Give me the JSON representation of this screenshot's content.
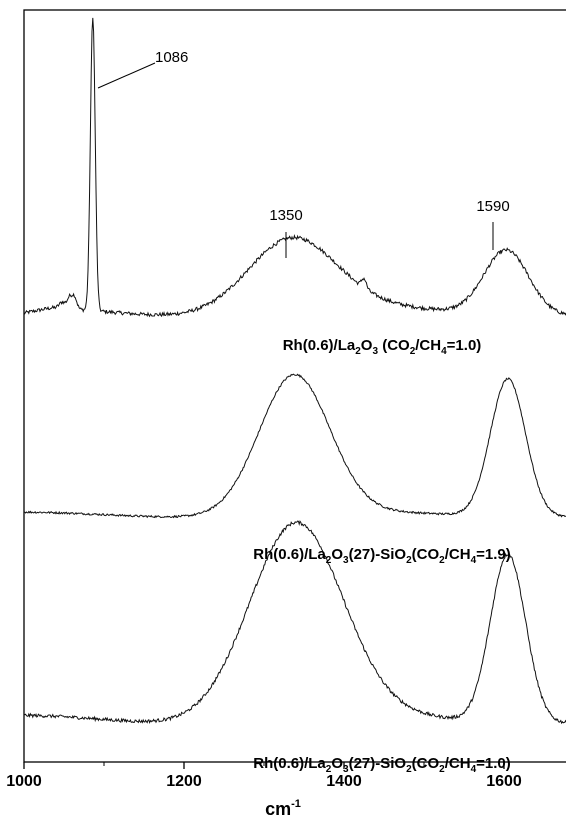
{
  "chart_data": {
    "type": "line",
    "xlabel": {
      "base": "cm",
      "sup": "-1"
    },
    "xlim": [
      1000,
      1700
    ],
    "x_ticks": [
      {
        "value": 1000,
        "label": "1000"
      },
      {
        "value": 1200,
        "label": "1200"
      },
      {
        "value": 1400,
        "label": "1400"
      },
      {
        "value": 1600,
        "label": "1600"
      }
    ],
    "ylabel": "",
    "y_ticks": [],
    "grid": false,
    "annotations": [
      {
        "label": "1086",
        "x": 1086
      },
      {
        "label": "1350",
        "x": 1350
      },
      {
        "label": "1590",
        "x": 1590
      }
    ],
    "series": [
      {
        "name_parts": [
          {
            "t": "Rh(0.6)/La"
          },
          {
            "t": "2",
            "sub": true
          },
          {
            "t": "O"
          },
          {
            "t": "3",
            "sub": true
          },
          {
            "t": " (CO"
          },
          {
            "t": "2",
            "sub": true
          },
          {
            "t": "/CH"
          },
          {
            "t": "4",
            "sub": true
          },
          {
            "t": "=1.0)"
          }
        ],
        "base": 0.05,
        "noise": 0.006,
        "peaks": [
          {
            "x": 1048,
            "h": 0.02,
            "w": 4
          },
          {
            "x": 1057,
            "h": 0.035,
            "w": 3
          },
          {
            "x": 1063,
            "h": 0.04,
            "w": 3
          },
          {
            "x": 1086,
            "h": 0.95,
            "w": 3
          },
          {
            "x": 1335,
            "h": 0.235,
            "w": 55
          },
          {
            "x": 1425,
            "h": 0.03,
            "w": 3
          },
          {
            "x": 1603,
            "h": 0.21,
            "w": 28
          }
        ]
      },
      {
        "name_parts": [
          {
            "t": "Rh(0.6)/La"
          },
          {
            "t": "2",
            "sub": true
          },
          {
            "t": "O"
          },
          {
            "t": "3",
            "sub": true
          },
          {
            "t": "(27)-SiO"
          },
          {
            "t": "2",
            "sub": true
          },
          {
            "t": "(CO"
          },
          {
            "t": "2",
            "sub": true
          },
          {
            "t": "/CH"
          },
          {
            "t": "4",
            "sub": true
          },
          {
            "t": "=1.9)"
          }
        ],
        "base": 0.05,
        "noise": 0.006,
        "peaks": [
          {
            "x": 1338,
            "h": 0.83,
            "w": 44
          },
          {
            "x": 1605,
            "h": 0.82,
            "w": 22
          }
        ]
      },
      {
        "name_parts": [
          {
            "t": "Rh(0.6)/La"
          },
          {
            "t": "2",
            "sub": true
          },
          {
            "t": "O"
          },
          {
            "t": "3",
            "sub": true
          },
          {
            "t": "(27)-SiO"
          },
          {
            "t": "2",
            "sub": true
          },
          {
            "t": "(CO"
          },
          {
            "t": "2",
            "sub": true
          },
          {
            "t": "/CH"
          },
          {
            "t": "4",
            "sub": true
          },
          {
            "t": "=1.0)"
          }
        ],
        "base": 0.05,
        "noise": 0.006,
        "peaks": [
          {
            "x": 1340,
            "h": 0.72,
            "w": 58
          },
          {
            "x": 1605,
            "h": 0.62,
            "w": 22
          }
        ]
      }
    ]
  }
}
